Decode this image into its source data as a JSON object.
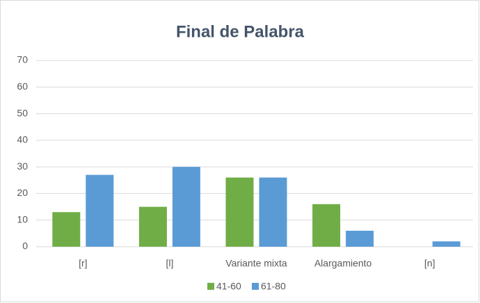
{
  "chart_data": {
    "type": "bar",
    "title": "Final de Palabra",
    "categories": [
      "[r]",
      "[l]",
      "Variante mixta",
      "Alargamiento",
      "[n]"
    ],
    "series": [
      {
        "name": "41-60",
        "color": "#70ad47",
        "values": [
          13,
          15,
          26,
          16,
          0
        ]
      },
      {
        "name": "61-80",
        "color": "#5b9bd5",
        "values": [
          27,
          30,
          26,
          6,
          2
        ]
      }
    ],
    "ylim": [
      0,
      70
    ],
    "yticks": [
      0,
      10,
      20,
      30,
      40,
      50,
      60,
      70
    ],
    "grid": true,
    "legend": "bottom"
  }
}
